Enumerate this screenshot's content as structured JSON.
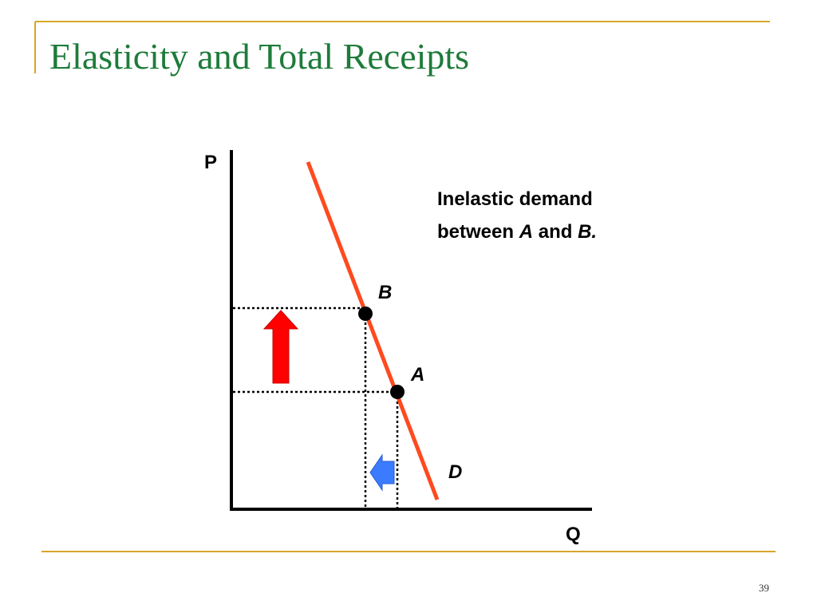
{
  "slide": {
    "title": "Elasticity and Total Receipts",
    "page_number": "39"
  },
  "colors": {
    "title": "#1e7b3a",
    "rule": "#d8a62a",
    "demand_line": "#ff4a1f",
    "price_arrow": "#ff0000",
    "quantity_arrow": "#3b7bff"
  },
  "diagram": {
    "y_axis_label": "P",
    "x_axis_label": "Q",
    "point_a_label": "A",
    "point_b_label": "B",
    "curve_label": "D",
    "annotation": {
      "line1": "Inelastic demand",
      "line2_prefix": "between ",
      "line2_a": "A",
      "line2_mid": " and ",
      "line2_b": "B."
    },
    "price_arrow_icon": "arrow-up-icon",
    "quantity_arrow_icon": "arrow-left-icon"
  }
}
